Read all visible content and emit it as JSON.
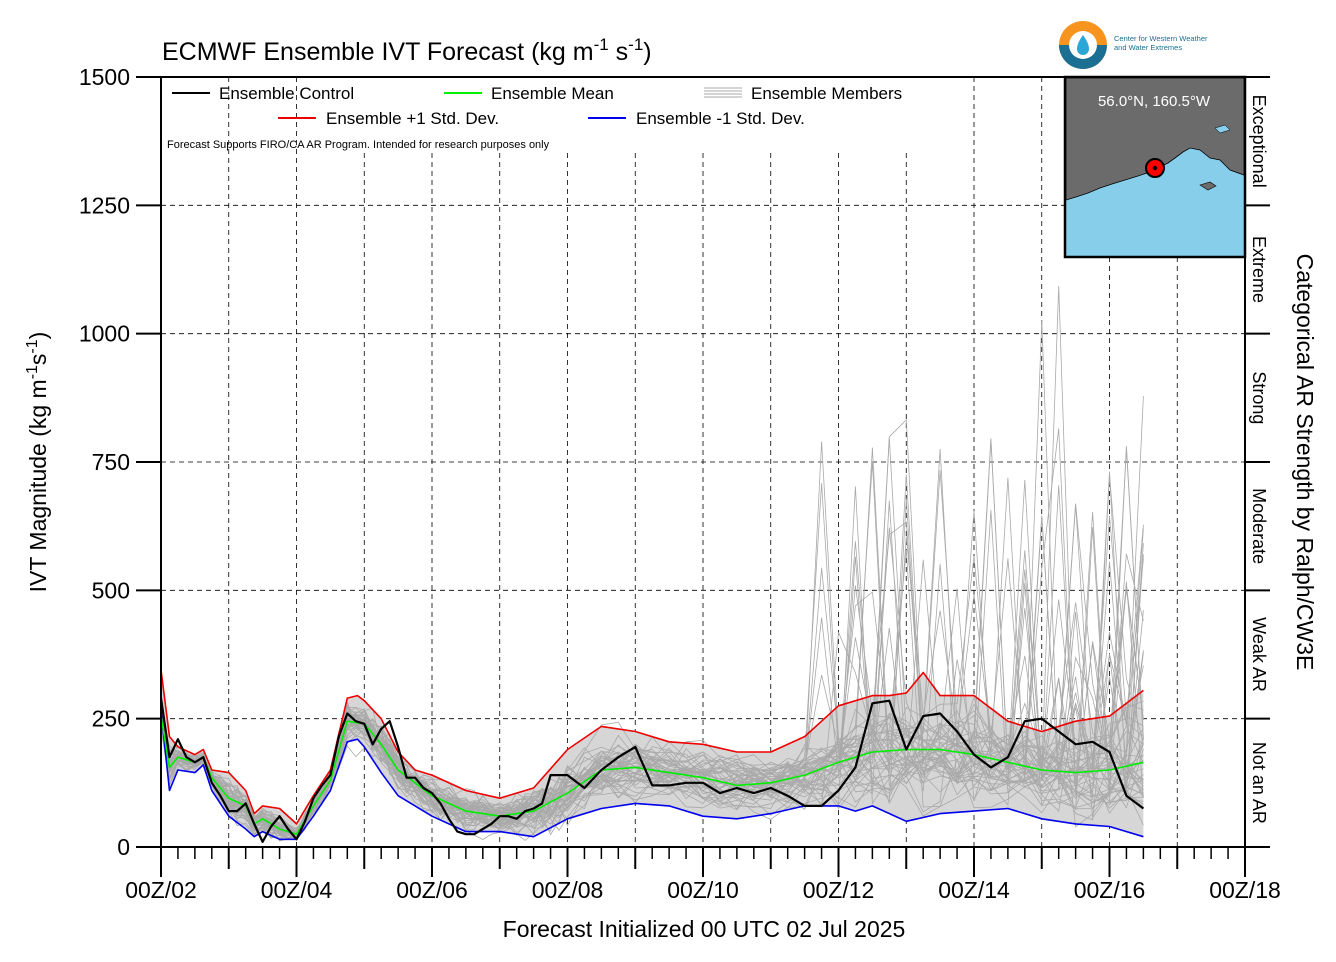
{
  "chart_data": {
    "type": "line",
    "title": "ECMWF Ensemble IVT Forecast (kg m",
    "title_units": [
      "-1",
      " s",
      "-1",
      ")"
    ],
    "ylabel_parts": [
      "IVT Magnitude (kg m",
      "-1",
      "s",
      "-1",
      ")"
    ],
    "xlabel": "Forecast Initialized 00 UTC 02 Jul 2025",
    "right_label": "Categorical AR Strength by Ralph/CW3E",
    "note": "Forecast Supports FIRO/CA AR Program. Intended for research purposes only",
    "inset_label": "56.0°N, 160.5°W",
    "logo_text": [
      "Center for Western Weather",
      "and Water Extremes"
    ],
    "xlim": [
      0,
      16
    ],
    "ylim": [
      0,
      1500
    ],
    "x_ticks": [
      0,
      2,
      4,
      6,
      8,
      10,
      12,
      14,
      16
    ],
    "x_tick_labels": [
      "00Z/02",
      "00Z/04",
      "00Z/06",
      "00Z/08",
      "00Z/10",
      "00Z/12",
      "00Z/14",
      "00Z/16",
      "00Z/18"
    ],
    "y_ticks": [
      0,
      250,
      500,
      750,
      1000,
      1250,
      1500
    ],
    "y_tick_labels": [
      "0",
      "250",
      "500",
      "750",
      "1000",
      "1250",
      "1500"
    ],
    "grid": true,
    "categories": [
      {
        "name": "Not an AR",
        "range": [
          0,
          250
        ]
      },
      {
        "name": "Weak AR",
        "range": [
          250,
          500
        ]
      },
      {
        "name": "Moderate",
        "range": [
          500,
          750
        ]
      },
      {
        "name": "Strong",
        "range": [
          750,
          1000
        ]
      },
      {
        "name": "Extreme",
        "range": [
          1000,
          1250
        ]
      },
      {
        "name": "Exceptional",
        "range": [
          1250,
          1500
        ]
      }
    ],
    "legend": {
      "placement": "top-left",
      "entries": [
        {
          "label": "Ensemble Control",
          "color": "#000000"
        },
        {
          "label": "Ensemble Mean",
          "color": "#00ee00"
        },
        {
          "label": "Ensemble Members",
          "color": "#aaaaaa"
        },
        {
          "label": "Ensemble +1 Std. Dev.",
          "color": "#ee0000"
        },
        {
          "label": "Ensemble -1 Std. Dev.",
          "color": "#0000ee"
        }
      ]
    },
    "series": [
      {
        "name": "Ensemble Control",
        "color": "#000000",
        "points": [
          [
            0,
            290
          ],
          [
            0.125,
            175
          ],
          [
            0.25,
            210
          ],
          [
            0.375,
            175
          ],
          [
            0.5,
            165
          ],
          [
            0.625,
            175
          ],
          [
            0.75,
            125
          ],
          [
            0.875,
            100
          ],
          [
            1,
            70
          ],
          [
            1.125,
            70
          ],
          [
            1.25,
            85
          ],
          [
            1.375,
            45
          ],
          [
            1.5,
            10
          ],
          [
            1.625,
            40
          ],
          [
            1.75,
            60
          ],
          [
            1.875,
            35
          ],
          [
            2,
            15
          ],
          [
            2.125,
            50
          ],
          [
            2.25,
            95
          ],
          [
            2.375,
            120
          ],
          [
            2.5,
            140
          ],
          [
            2.625,
            215
          ],
          [
            2.75,
            260
          ],
          [
            2.875,
            245
          ],
          [
            3,
            240
          ],
          [
            3.125,
            200
          ],
          [
            3.25,
            230
          ],
          [
            3.375,
            245
          ],
          [
            3.5,
            195
          ],
          [
            3.625,
            135
          ],
          [
            3.75,
            135
          ],
          [
            3.875,
            115
          ],
          [
            4,
            105
          ],
          [
            4.125,
            85
          ],
          [
            4.25,
            55
          ],
          [
            4.375,
            30
          ],
          [
            4.5,
            25
          ],
          [
            4.625,
            25
          ],
          [
            4.75,
            35
          ],
          [
            4.875,
            45
          ],
          [
            5,
            60
          ],
          [
            5.125,
            60
          ],
          [
            5.25,
            55
          ],
          [
            5.375,
            70
          ],
          [
            5.5,
            75
          ],
          [
            5.625,
            85
          ],
          [
            5.75,
            140
          ],
          [
            6,
            140
          ],
          [
            6.25,
            115
          ],
          [
            6.5,
            150
          ],
          [
            6.75,
            175
          ],
          [
            7,
            195
          ],
          [
            7.25,
            120
          ],
          [
            7.5,
            120
          ],
          [
            7.75,
            125
          ],
          [
            8,
            125
          ],
          [
            8.25,
            105
          ],
          [
            8.5,
            115
          ],
          [
            8.75,
            105
          ],
          [
            9,
            115
          ],
          [
            9.25,
            100
          ],
          [
            9.5,
            80
          ],
          [
            9.75,
            80
          ],
          [
            10,
            110
          ],
          [
            10.25,
            155
          ],
          [
            10.5,
            280
          ],
          [
            10.75,
            285
          ],
          [
            11,
            190
          ],
          [
            11.25,
            255
          ],
          [
            11.5,
            260
          ],
          [
            11.75,
            225
          ],
          [
            12,
            180
          ],
          [
            12.25,
            155
          ],
          [
            12.5,
            175
          ],
          [
            12.75,
            245
          ],
          [
            13,
            250
          ],
          [
            13.25,
            225
          ],
          [
            13.5,
            200
          ],
          [
            13.75,
            205
          ],
          [
            14,
            185
          ],
          [
            14.25,
            100
          ],
          [
            14.5,
            75
          ]
        ]
      },
      {
        "name": "Ensemble Mean",
        "color": "#00ee00",
        "points": [
          [
            0,
            255
          ],
          [
            0.125,
            155
          ],
          [
            0.25,
            175
          ],
          [
            0.5,
            165
          ],
          [
            0.625,
            175
          ],
          [
            0.75,
            135
          ],
          [
            1,
            95
          ],
          [
            1.25,
            80
          ],
          [
            1.375,
            45
          ],
          [
            1.5,
            55
          ],
          [
            1.75,
            35
          ],
          [
            2,
            25
          ],
          [
            2.25,
            80
          ],
          [
            2.5,
            130
          ],
          [
            2.75,
            245
          ],
          [
            3,
            240
          ],
          [
            3.25,
            200
          ],
          [
            3.5,
            150
          ],
          [
            3.75,
            125
          ],
          [
            4,
            100
          ],
          [
            4.5,
            70
          ],
          [
            5,
            60
          ],
          [
            5.5,
            70
          ],
          [
            6,
            105
          ],
          [
            6.5,
            150
          ],
          [
            7,
            155
          ],
          [
            7.5,
            145
          ],
          [
            8,
            135
          ],
          [
            8.5,
            120
          ],
          [
            9,
            125
          ],
          [
            9.5,
            140
          ],
          [
            10,
            165
          ],
          [
            10.5,
            185
          ],
          [
            11,
            190
          ],
          [
            11.5,
            190
          ],
          [
            12,
            180
          ],
          [
            12.5,
            165
          ],
          [
            13,
            150
          ],
          [
            13.5,
            145
          ],
          [
            14,
            150
          ],
          [
            14.5,
            165
          ]
        ]
      },
      {
        "name": "Ensemble +1 Std. Dev.",
        "color": "#ee0000",
        "points": [
          [
            0,
            345
          ],
          [
            0.125,
            215
          ],
          [
            0.25,
            195
          ],
          [
            0.5,
            180
          ],
          [
            0.625,
            190
          ],
          [
            0.75,
            150
          ],
          [
            1,
            145
          ],
          [
            1.25,
            110
          ],
          [
            1.375,
            65
          ],
          [
            1.5,
            80
          ],
          [
            1.75,
            75
          ],
          [
            2,
            45
          ],
          [
            2.25,
            100
          ],
          [
            2.5,
            150
          ],
          [
            2.75,
            290
          ],
          [
            2.9,
            295
          ],
          [
            3,
            285
          ],
          [
            3.25,
            250
          ],
          [
            3.5,
            185
          ],
          [
            3.75,
            150
          ],
          [
            4,
            140
          ],
          [
            4.5,
            110
          ],
          [
            5,
            95
          ],
          [
            5.5,
            115
          ],
          [
            6,
            190
          ],
          [
            6.5,
            235
          ],
          [
            7,
            225
          ],
          [
            7.5,
            205
          ],
          [
            8,
            200
          ],
          [
            8.5,
            185
          ],
          [
            9,
            185
          ],
          [
            9.5,
            215
          ],
          [
            10,
            275
          ],
          [
            10.5,
            295
          ],
          [
            10.75,
            295
          ],
          [
            11,
            300
          ],
          [
            11.25,
            340
          ],
          [
            11.5,
            295
          ],
          [
            12,
            295
          ],
          [
            12.5,
            245
          ],
          [
            13,
            225
          ],
          [
            13.5,
            245
          ],
          [
            14,
            255
          ],
          [
            14.5,
            305
          ]
        ]
      },
      {
        "name": "Ensemble -1 Std. Dev.",
        "color": "#0000ee",
        "points": [
          [
            0,
            265
          ],
          [
            0.125,
            110
          ],
          [
            0.25,
            150
          ],
          [
            0.5,
            145
          ],
          [
            0.625,
            160
          ],
          [
            0.75,
            110
          ],
          [
            1,
            60
          ],
          [
            1.25,
            35
          ],
          [
            1.375,
            20
          ],
          [
            1.5,
            30
          ],
          [
            1.75,
            15
          ],
          [
            2,
            15
          ],
          [
            2.25,
            60
          ],
          [
            2.5,
            110
          ],
          [
            2.75,
            205
          ],
          [
            2.9,
            210
          ],
          [
            3,
            195
          ],
          [
            3.25,
            145
          ],
          [
            3.5,
            100
          ],
          [
            3.75,
            80
          ],
          [
            4,
            60
          ],
          [
            4.5,
            30
          ],
          [
            5,
            30
          ],
          [
            5.5,
            20
          ],
          [
            6,
            55
          ],
          [
            6.5,
            75
          ],
          [
            7,
            85
          ],
          [
            7.5,
            80
          ],
          [
            8,
            60
          ],
          [
            8.5,
            55
          ],
          [
            9,
            65
          ],
          [
            9.5,
            80
          ],
          [
            10,
            80
          ],
          [
            10.25,
            70
          ],
          [
            10.5,
            80
          ],
          [
            11,
            50
          ],
          [
            11.5,
            65
          ],
          [
            12,
            70
          ],
          [
            12.5,
            75
          ],
          [
            13,
            55
          ],
          [
            13.5,
            45
          ],
          [
            14,
            40
          ],
          [
            14.5,
            20
          ]
        ]
      }
    ],
    "members_note": "50 gray ensemble member traces spread around the mean between the -1 and +1 std. dev. envelope, with outliers up to ~890 near 00Z/14"
  }
}
